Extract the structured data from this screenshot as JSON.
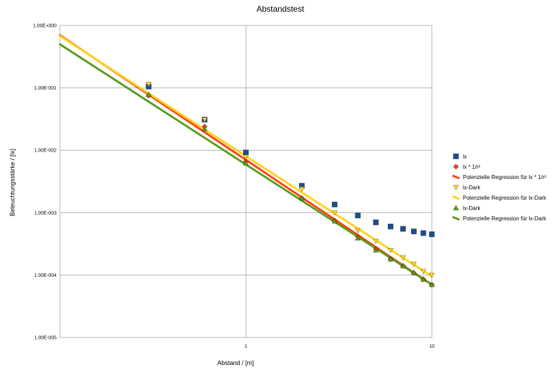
{
  "chart_data": {
    "type": "scatter",
    "title": "Abstandstest",
    "xlabel": "Abstand / [m]",
    "ylabel": "Beleuchtungsstärke / [lx]",
    "x_scale": "log",
    "y_scale": "log",
    "xlim": [
      0.1,
      10
    ],
    "ylim": [
      1e-05,
      1
    ],
    "x_ticks": [
      {
        "value": 1,
        "label": "1"
      },
      {
        "value": 10,
        "label": "10"
      }
    ],
    "y_ticks": [
      {
        "value": 1,
        "label": "1.00E+000"
      },
      {
        "value": 0.1,
        "label": "1.00E-001"
      },
      {
        "value": 0.01,
        "label": "1.00E-002"
      },
      {
        "value": 0.001,
        "label": "1.00E-003"
      },
      {
        "value": 0.0001,
        "label": "1.00E-004"
      },
      {
        "value": 1e-05,
        "label": "1.00E-005"
      }
    ],
    "grid": true,
    "legend_position": "right",
    "series": [
      {
        "name": "lx",
        "kind": "points",
        "marker": "square",
        "color": "#1f4e8c",
        "x": [
          0.3,
          0.6,
          1,
          2,
          3,
          4,
          5,
          6,
          7,
          8,
          9,
          10
        ],
        "y": [
          0.105,
          0.031,
          0.0092,
          0.0027,
          0.00135,
          0.0009,
          0.0007,
          0.0006,
          0.00055,
          0.0005,
          0.00047,
          0.00045
        ]
      },
      {
        "name": "lx * 1/r²",
        "kind": "points",
        "marker": "diamond",
        "color": "#ff420e",
        "x": [
          0.3,
          0.6,
          1,
          2,
          3,
          4,
          5,
          6,
          7,
          8,
          9,
          10
        ],
        "y": [
          0.075,
          0.024,
          0.0066,
          0.0017,
          0.00075,
          0.00041,
          0.00026,
          0.00018,
          0.00014,
          0.000108,
          8.6e-05,
          7e-05
        ]
      },
      {
        "name": "Potenzielle Regression für lx * 1/r²",
        "kind": "line",
        "color": "#ff420e",
        "x": [
          0.1,
          10
        ],
        "y": [
          0.7,
          7e-05
        ]
      },
      {
        "name": "lx-Dark",
        "kind": "points",
        "marker": "triangle-down",
        "color": "#ffd320",
        "x": [
          0.3,
          0.6,
          1,
          2,
          3,
          4,
          5,
          6,
          7,
          8,
          9,
          10
        ],
        "y": [
          0.115,
          0.031,
          0.0078,
          0.0024,
          0.001,
          0.00052,
          0.00035,
          0.00025,
          0.00019,
          0.00015,
          0.000115,
          0.0001
        ]
      },
      {
        "name": "Potenzielle Regression für lx-Dark",
        "kind": "line",
        "color": "#ffd320",
        "x": [
          0.1,
          10
        ],
        "y": [
          0.68,
          9.5e-05
        ]
      },
      {
        "name": "lx-Dark",
        "kind": "points",
        "marker": "triangle-up",
        "color": "#579d1c",
        "x": [
          0.3,
          0.6,
          1,
          2,
          3,
          4,
          5,
          6,
          7,
          8,
          9,
          10
        ],
        "y": [
          0.078,
          0.022,
          0.0062,
          0.0017,
          0.00073,
          0.00039,
          0.00025,
          0.00018,
          0.00014,
          0.00011,
          8.5e-05,
          7e-05
        ]
      },
      {
        "name": "Potenzielle Regression für lx-Dark",
        "kind": "line",
        "color": "#579d1c",
        "x": [
          0.1,
          10
        ],
        "y": [
          0.5,
          7e-05
        ]
      }
    ]
  }
}
